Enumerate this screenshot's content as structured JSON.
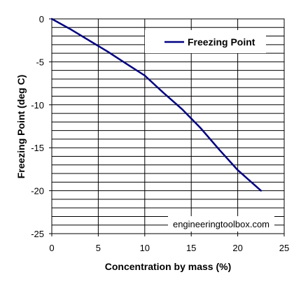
{
  "chart_data": {
    "type": "line",
    "xlabel": "Concentration by mass (%)",
    "ylabel": "Freezing Point (deg C)",
    "xlim": [
      0,
      25
    ],
    "ylim": [
      -25,
      0
    ],
    "x_ticks": [
      0,
      5,
      10,
      15,
      20,
      25
    ],
    "y_ticks": [
      0,
      -5,
      -10,
      -15,
      -20,
      -25
    ],
    "y_minor_step": 1,
    "grid": "horizontal",
    "legend_position": "top-right",
    "series": [
      {
        "name": "Freezing Point",
        "color": "#000080",
        "x": [
          0,
          2,
          4,
          6,
          8,
          10,
          12,
          14,
          16,
          18,
          20,
          22.5
        ],
        "y": [
          0,
          -1.2,
          -2.5,
          -3.8,
          -5.2,
          -6.6,
          -8.6,
          -10.5,
          -12.7,
          -15.2,
          -17.6,
          -20.0
        ]
      }
    ],
    "watermark": "engineeringtoolbox.com"
  }
}
